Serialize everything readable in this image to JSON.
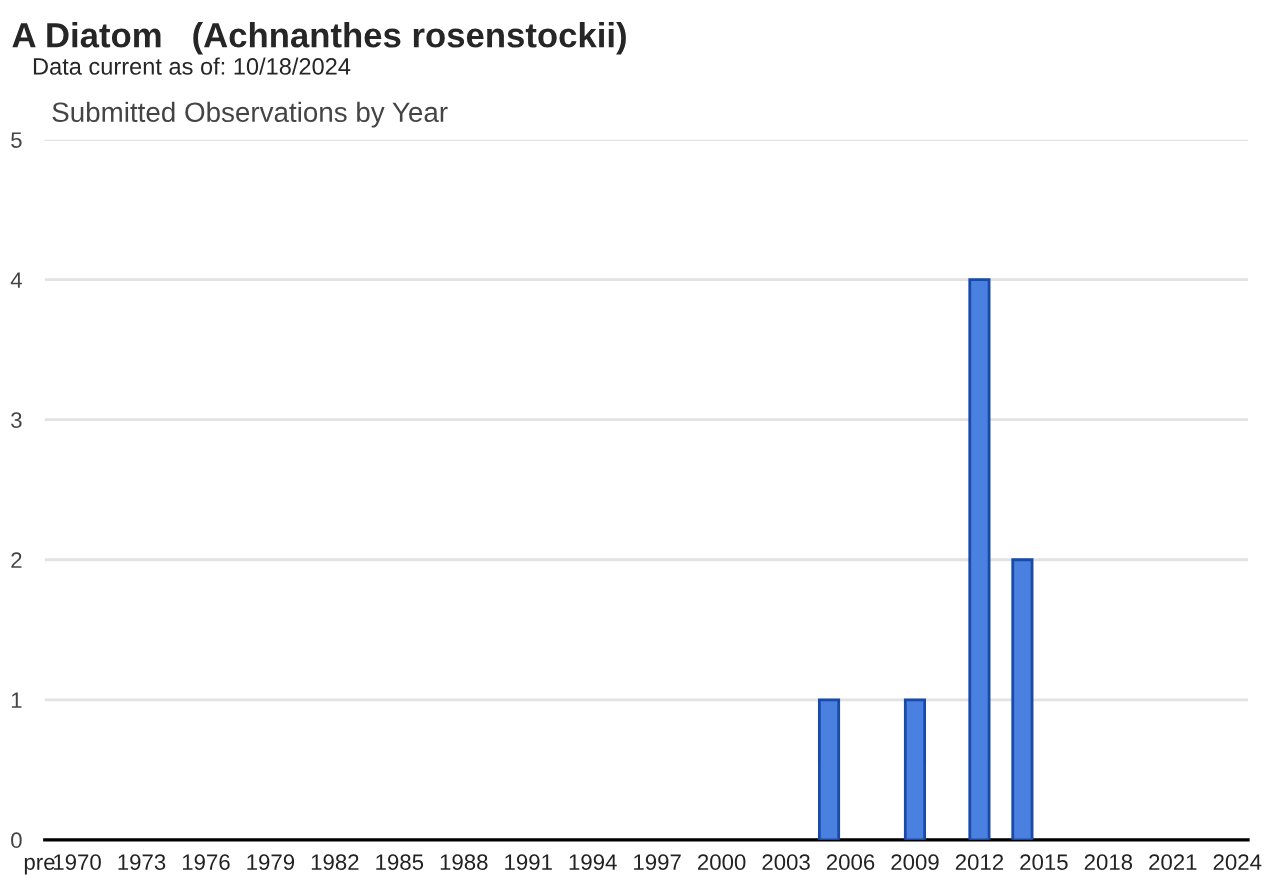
{
  "chart_data": {
    "type": "bar",
    "title": "A Diatom   (Achnanthes rosenstockii)",
    "subtitle": "Data current as of: 10/18/2024",
    "annotations": [
      "Submitted Observations by Year"
    ],
    "categories": [
      "pre",
      "1970",
      null,
      null,
      "1973",
      null,
      null,
      "1976",
      null,
      null,
      "1979",
      null,
      null,
      "1982",
      null,
      null,
      "1985",
      null,
      null,
      "1988",
      null,
      null,
      "1991",
      null,
      null,
      "1994",
      null,
      null,
      "1997",
      null,
      null,
      "2000",
      null,
      null,
      "2003",
      null,
      null,
      "2006",
      null,
      null,
      "2009",
      null,
      null,
      "2012",
      null,
      null,
      "2015",
      null,
      null,
      "2018",
      null,
      null,
      "2021",
      null,
      null,
      "2024"
    ],
    "values": [
      0,
      0,
      0,
      0,
      0,
      0,
      0,
      0,
      0,
      0,
      0,
      0,
      0,
      0,
      0,
      0,
      0,
      0,
      0,
      0,
      0,
      0,
      0,
      0,
      0,
      0,
      0,
      0,
      0,
      0,
      0,
      0,
      0,
      0,
      0,
      0,
      1,
      0,
      0,
      0,
      1,
      0,
      0,
      4,
      0,
      2,
      0,
      0,
      0,
      0,
      0,
      0,
      0,
      0,
      0,
      0
    ],
    "color": "#4a80e0",
    "ylim": [
      0,
      5
    ],
    "yticks": [
      0,
      1,
      2,
      3,
      4,
      5
    ],
    "grid": "y",
    "legend": false
  }
}
